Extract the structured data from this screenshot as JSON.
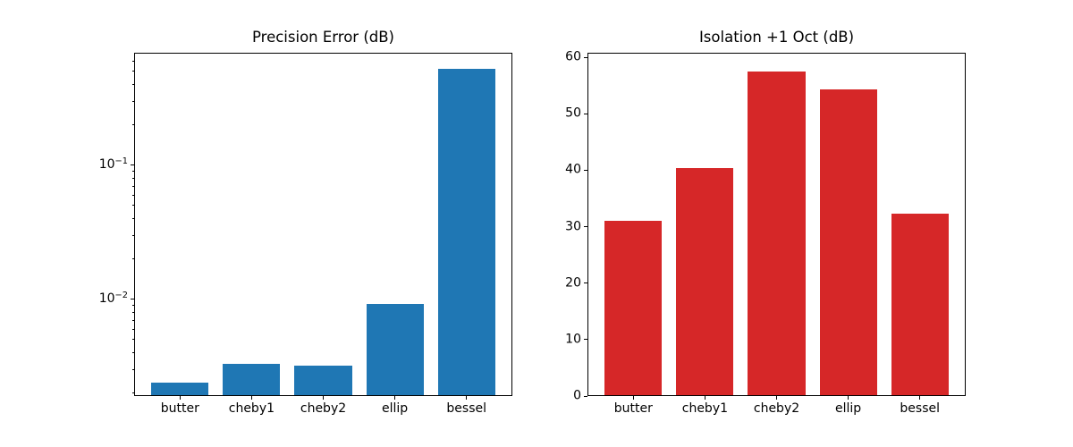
{
  "figure": {
    "background": "#ffffff",
    "text_color": "#000000"
  },
  "chart_data": [
    {
      "type": "bar",
      "title": "Precision Error (dB)",
      "categories": [
        "butter",
        "cheby1",
        "cheby2",
        "ellip",
        "bessel"
      ],
      "values": [
        0.0024,
        0.0033,
        0.0032,
        0.0092,
        0.52
      ],
      "bar_color": "#1f77b4",
      "yscale": "log",
      "ylim": [
        0.0019,
        0.69
      ],
      "xlim": [
        -0.64,
        4.64
      ],
      "bar_width": 0.8,
      "y_ticks": [
        {
          "value": 0.01,
          "label": "10⁻²"
        },
        {
          "value": 0.1,
          "label": "10⁻¹"
        }
      ],
      "xlabel": "",
      "ylabel": "",
      "grid": false,
      "legend": null
    },
    {
      "type": "bar",
      "title": "Isolation +1 Oct (dB)",
      "categories": [
        "butter",
        "cheby1",
        "cheby2",
        "ellip",
        "bessel"
      ],
      "values": [
        31.1,
        40.3,
        57.5,
        54.3,
        32.3
      ],
      "bar_color": "#d62728",
      "yscale": "linear",
      "ylim": [
        0,
        60.8
      ],
      "xlim": [
        -0.64,
        4.64
      ],
      "bar_width": 0.8,
      "y_ticks": [
        {
          "value": 0,
          "label": "0"
        },
        {
          "value": 10,
          "label": "10"
        },
        {
          "value": 20,
          "label": "20"
        },
        {
          "value": 30,
          "label": "30"
        },
        {
          "value": 40,
          "label": "40"
        },
        {
          "value": 50,
          "label": "50"
        },
        {
          "value": 60,
          "label": "60"
        }
      ],
      "xlabel": "",
      "ylabel": "",
      "grid": false,
      "legend": null
    }
  ]
}
